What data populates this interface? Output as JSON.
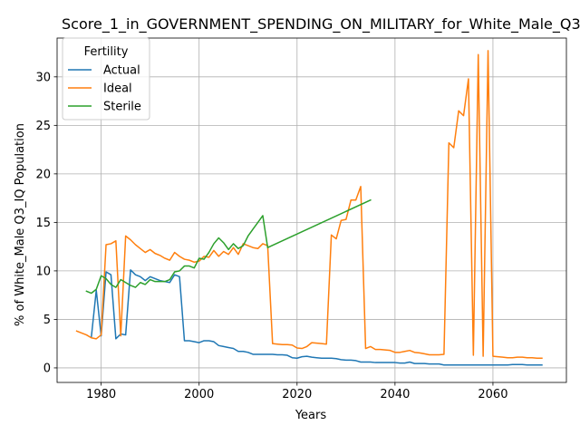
{
  "chart_data": {
    "type": "line",
    "title": "Score_1_in_GOVERNMENT_SPENDING_ON_MILITARY_for_White_Male_Q3_IQ",
    "xlabel": "Years",
    "ylabel": "% of White_Male Q3_IQ Population",
    "xlim": [
      1971,
      2075
    ],
    "ylim": [
      -1.5,
      34
    ],
    "x_ticks": [
      1980,
      2000,
      2020,
      2040,
      2060
    ],
    "x_tick_labels": [
      "1980",
      "2000",
      "2020",
      "2040",
      "2060"
    ],
    "y_ticks": [
      0,
      5,
      10,
      15,
      20,
      25,
      30
    ],
    "y_tick_labels": [
      "0",
      "5",
      "10",
      "15",
      "20",
      "25",
      "30"
    ],
    "grid": true,
    "legend": {
      "title": "Fertility",
      "placement": "top-left"
    },
    "series": [
      {
        "name": "Actual",
        "color": "#1f77b4",
        "x": [
          1978,
          1979,
          1980,
          1981,
          1982,
          1983,
          1984,
          1985,
          1986,
          1987,
          1988,
          1989,
          1990,
          1991,
          1992,
          1993,
          1994,
          1995,
          1996,
          1997,
          1998,
          1999,
          2000,
          2001,
          2002,
          2003,
          2004,
          2005,
          2006,
          2007,
          2008,
          2009,
          2010,
          2011,
          2012,
          2013,
          2014,
          2015,
          2016,
          2017,
          2018,
          2019,
          2020,
          2021,
          2022,
          2023,
          2024,
          2025,
          2026,
          2027,
          2028,
          2029,
          2030,
          2031,
          2032,
          2033,
          2034,
          2035,
          2036,
          2037,
          2038,
          2039,
          2040,
          2041,
          2042,
          2043,
          2044,
          2045,
          2046,
          2047,
          2048,
          2049,
          2050,
          2051,
          2052,
          2053,
          2054,
          2055,
          2056,
          2057,
          2058,
          2059,
          2060,
          2061,
          2062,
          2063,
          2064,
          2065,
          2066,
          2067,
          2068,
          2069,
          2070
        ],
        "y": [
          3.2,
          8.0,
          3.3,
          9.9,
          9.6,
          3.0,
          3.5,
          3.4,
          10.1,
          9.6,
          9.4,
          9.0,
          9.4,
          9.2,
          9.0,
          8.9,
          8.8,
          9.6,
          9.4,
          2.8,
          2.8,
          2.7,
          2.6,
          2.8,
          2.8,
          2.7,
          2.3,
          2.2,
          2.1,
          2.0,
          1.7,
          1.7,
          1.6,
          1.4,
          1.4,
          1.4,
          1.4,
          1.4,
          1.35,
          1.35,
          1.3,
          1.05,
          1.0,
          1.15,
          1.2,
          1.1,
          1.05,
          1.0,
          1.0,
          1.0,
          0.95,
          0.85,
          0.8,
          0.8,
          0.75,
          0.6,
          0.6,
          0.6,
          0.55,
          0.55,
          0.55,
          0.55,
          0.55,
          0.5,
          0.5,
          0.6,
          0.45,
          0.45,
          0.45,
          0.4,
          0.4,
          0.4,
          0.3,
          0.3,
          0.3,
          0.3,
          0.3,
          0.3,
          0.3,
          0.3,
          0.3,
          0.3,
          0.3,
          0.3,
          0.3,
          0.3,
          0.35,
          0.35,
          0.35,
          0.3,
          0.3,
          0.3,
          0.3
        ]
      },
      {
        "name": "Ideal",
        "color": "#ff7f0e",
        "x": [
          1975,
          1976,
          1977,
          1978,
          1979,
          1980,
          1981,
          1982,
          1983,
          1984,
          1985,
          1986,
          1987,
          1988,
          1989,
          1990,
          1991,
          1992,
          1993,
          1994,
          1995,
          1996,
          1997,
          1998,
          1999,
          2000,
          2001,
          2002,
          2003,
          2004,
          2005,
          2006,
          2007,
          2008,
          2009,
          2010,
          2011,
          2012,
          2013,
          2014,
          2015,
          2016,
          2017,
          2018,
          2019,
          2020,
          2021,
          2022,
          2023,
          2024,
          2025,
          2026,
          2027,
          2028,
          2029,
          2030,
          2031,
          2032,
          2033,
          2034,
          2035,
          2036,
          2037,
          2038,
          2039,
          2040,
          2041,
          2042,
          2043,
          2044,
          2045,
          2046,
          2047,
          2048,
          2049,
          2050,
          2051,
          2052,
          2053,
          2054,
          2055,
          2056,
          2057,
          2058,
          2059,
          2060,
          2061,
          2062,
          2063,
          2064,
          2065,
          2066,
          2067,
          2068,
          2069,
          2070
        ],
        "y": [
          3.8,
          3.6,
          3.4,
          3.1,
          3.0,
          3.4,
          12.7,
          12.8,
          13.1,
          3.3,
          13.6,
          13.2,
          12.7,
          12.3,
          11.9,
          12.2,
          11.8,
          11.6,
          11.3,
          11.1,
          11.9,
          11.5,
          11.2,
          11.1,
          10.9,
          11.0,
          11.5,
          11.4,
          12.1,
          11.5,
          12.0,
          11.7,
          12.4,
          11.7,
          12.8,
          12.6,
          12.4,
          12.3,
          12.8,
          12.6,
          2.5,
          2.45,
          2.4,
          2.4,
          2.35,
          2.05,
          2.0,
          2.2,
          2.6,
          2.55,
          2.5,
          2.45,
          13.7,
          13.3,
          15.2,
          15.3,
          17.3,
          17.3,
          18.7,
          2.0,
          2.2,
          1.9,
          1.9,
          1.85,
          1.8,
          1.6,
          1.6,
          1.7,
          1.8,
          1.6,
          1.55,
          1.45,
          1.35,
          1.35,
          1.35,
          1.4,
          23.2,
          22.7,
          26.5,
          26.0,
          29.8,
          1.3,
          32.3,
          1.2,
          32.7,
          1.2,
          1.15,
          1.1,
          1.05,
          1.05,
          1.1,
          1.1,
          1.05,
          1.05,
          1.0,
          1.0
        ]
      },
      {
        "name": "Sterile",
        "color": "#2ca02c",
        "x": [
          1977,
          1978,
          1979,
          1980,
          1981,
          1982,
          1983,
          1984,
          1985,
          1986,
          1987,
          1988,
          1989,
          1990,
          1991,
          1992,
          1993,
          1994,
          1995,
          1996,
          1997,
          1998,
          1999,
          2000,
          2001,
          2002,
          2003,
          2004,
          2005,
          2006,
          2007,
          2008,
          2009,
          2010,
          2011,
          2012,
          2013,
          2014,
          2035
        ],
        "y": [
          7.9,
          7.7,
          8.1,
          9.5,
          9.2,
          8.6,
          8.3,
          9.1,
          8.8,
          8.5,
          8.3,
          8.8,
          8.6,
          9.1,
          8.9,
          8.9,
          8.9,
          9.1,
          9.9,
          10.0,
          10.5,
          10.5,
          10.3,
          11.3,
          11.2,
          11.9,
          12.8,
          13.4,
          12.9,
          12.2,
          12.8,
          12.3,
          12.6,
          13.6,
          14.3,
          15.0,
          15.7,
          12.4,
          17.3
        ]
      }
    ]
  }
}
